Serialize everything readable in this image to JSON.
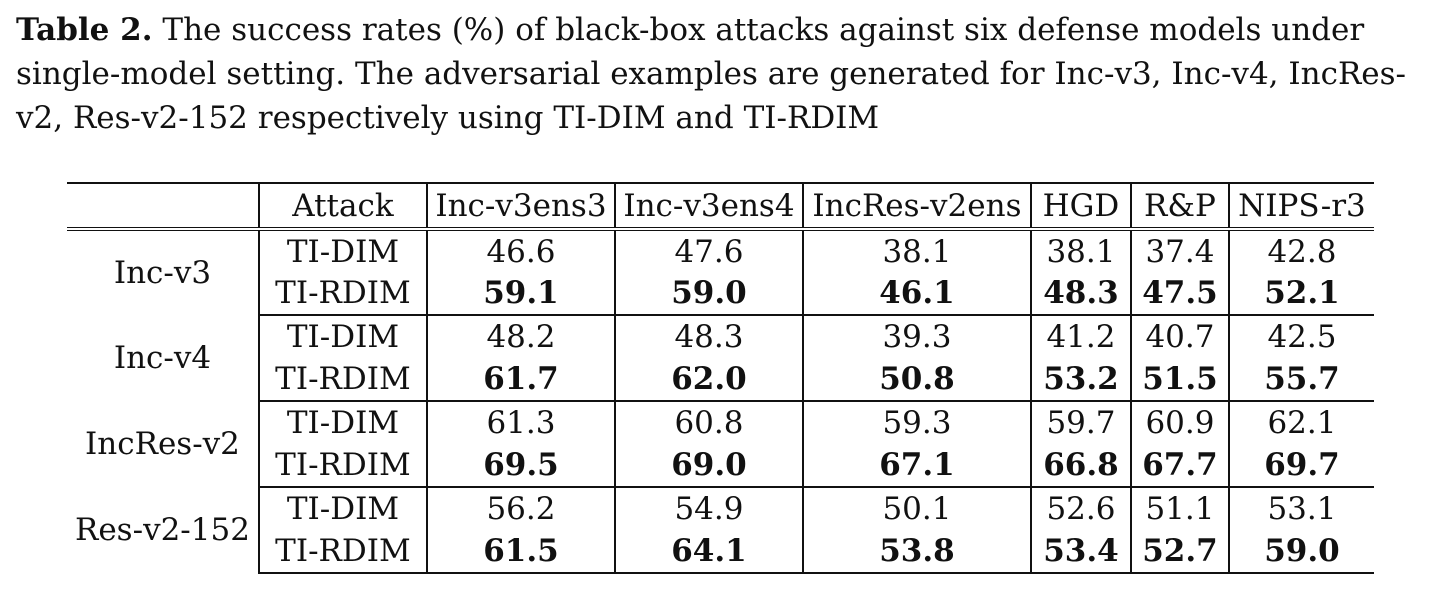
{
  "caption": {
    "label": "Table 2.",
    "text": "The success rates (%) of black-box attacks against six defense models under single-model setting. The adversarial examples are generated for Inc-v3, Inc-v4, IncRes-v2, Res-v2-152 respectively using TI-DIM and TI-RDIM"
  },
  "table": {
    "headers": [
      "",
      "Attack",
      "Inc-v3ens3",
      "Inc-v3ens4",
      "IncRes-v2ens",
      "HGD",
      "R&P",
      "NIPS-r3"
    ],
    "groups": [
      {
        "model": "Inc-v3",
        "rows": [
          {
            "attack": "TI-DIM",
            "values": [
              "46.6",
              "47.6",
              "38.1",
              "38.1",
              "37.4",
              "42.8"
            ]
          },
          {
            "attack": "TI-RDIM",
            "values": [
              "59.1",
              "59.0",
              "46.1",
              "48.3",
              "47.5",
              "52.1"
            ]
          }
        ]
      },
      {
        "model": "Inc-v4",
        "rows": [
          {
            "attack": "TI-DIM",
            "values": [
              "48.2",
              "48.3",
              "39.3",
              "41.2",
              "40.7",
              "42.5"
            ]
          },
          {
            "attack": "TI-RDIM",
            "values": [
              "61.7",
              "62.0",
              "50.8",
              "53.2",
              "51.5",
              "55.7"
            ]
          }
        ]
      },
      {
        "model": "IncRes-v2",
        "rows": [
          {
            "attack": "TI-DIM",
            "values": [
              "61.3",
              "60.8",
              "59.3",
              "59.7",
              "60.9",
              "62.1"
            ]
          },
          {
            "attack": "TI-RDIM",
            "values": [
              "69.5",
              "69.0",
              "67.1",
              "66.8",
              "67.7",
              "69.7"
            ]
          }
        ]
      },
      {
        "model": "Res-v2-152",
        "rows": [
          {
            "attack": "TI-DIM",
            "values": [
              "56.2",
              "54.9",
              "50.1",
              "52.6",
              "51.1",
              "53.1"
            ]
          },
          {
            "attack": "TI-RDIM",
            "values": [
              "61.5",
              "64.1",
              "53.8",
              "53.4",
              "52.7",
              "59.0"
            ]
          }
        ]
      }
    ]
  }
}
